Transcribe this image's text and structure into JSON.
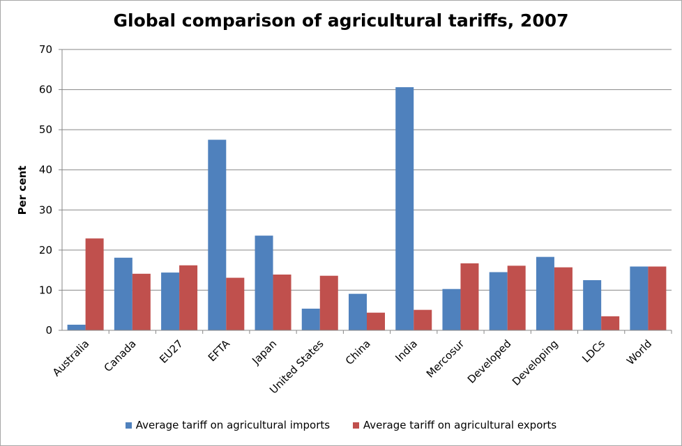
{
  "chart_data": {
    "type": "bar",
    "title": "Global comparison of agricultural tariffs, 2007",
    "xlabel": "",
    "ylabel": "Per cent",
    "ylim": [
      0,
      70
    ],
    "yticks": [
      0,
      10,
      20,
      30,
      40,
      50,
      60,
      70
    ],
    "grid": true,
    "legend_position": "bottom",
    "categories": [
      "Australia",
      "Canada",
      "EU27",
      "EFTA",
      "Japan",
      "United States",
      "China",
      "India",
      "Mercosur",
      "Developed",
      "Developing",
      "LDCs",
      "World"
    ],
    "series": [
      {
        "name": "Average tariff on agricultural imports",
        "color": "#4f81bd",
        "values": [
          1.4,
          18.1,
          14.4,
          47.5,
          23.6,
          5.4,
          9.1,
          60.6,
          10.3,
          14.5,
          18.3,
          12.5,
          15.9
        ]
      },
      {
        "name": "Average tariff on agricultural exports",
        "color": "#c0504d",
        "values": [
          22.9,
          14.1,
          16.2,
          13.1,
          13.9,
          13.6,
          4.4,
          5.1,
          16.7,
          16.1,
          15.7,
          3.5,
          15.9
        ]
      }
    ]
  }
}
